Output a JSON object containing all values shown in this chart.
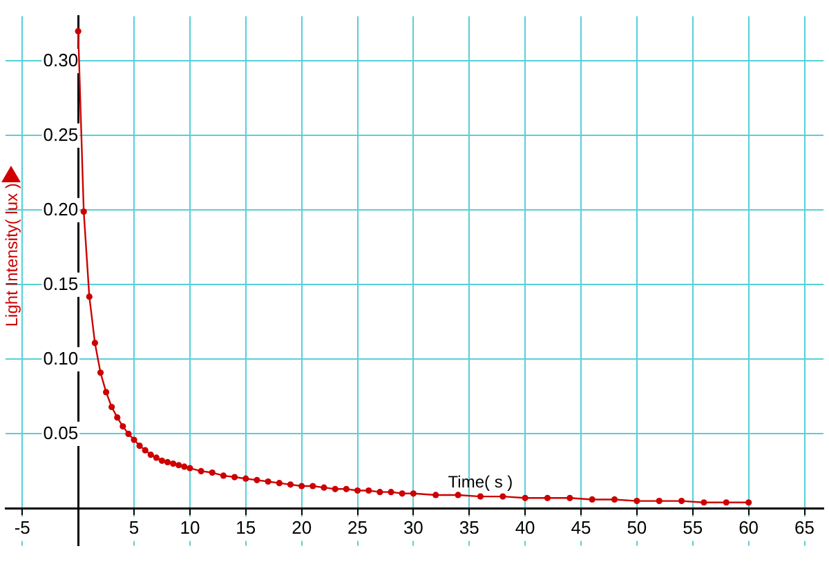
{
  "chart_data": {
    "type": "line",
    "xlabel": "Time( s )",
    "ylabel": "Light Intensity( lux )",
    "x": [
      0,
      0.5,
      1,
      1.5,
      2,
      2.5,
      3,
      3.5,
      4,
      4.5,
      5,
      5.5,
      6,
      6.5,
      7,
      7.5,
      8,
      8.5,
      9,
      9.5,
      10,
      11,
      12,
      13,
      14,
      15,
      16,
      17,
      18,
      19,
      20,
      21,
      22,
      23,
      24,
      25,
      26,
      27,
      28,
      29,
      30,
      32,
      34,
      36,
      38,
      40,
      42,
      44,
      46,
      48,
      50,
      52,
      54,
      56,
      58,
      60
    ],
    "series": [
      {
        "color": "#cc0000",
        "values": [
          0.32,
          0.199,
          0.142,
          0.111,
          0.091,
          0.078,
          0.068,
          0.061,
          0.055,
          0.05,
          0.046,
          0.042,
          0.039,
          0.036,
          0.034,
          0.032,
          0.031,
          0.03,
          0.029,
          0.028,
          0.027,
          0.025,
          0.024,
          0.022,
          0.021,
          0.02,
          0.019,
          0.018,
          0.017,
          0.016,
          0.015,
          0.015,
          0.014,
          0.013,
          0.013,
          0.012,
          0.012,
          0.011,
          0.011,
          0.01,
          0.01,
          0.009,
          0.009,
          0.008,
          0.008,
          0.007,
          0.007,
          0.007,
          0.006,
          0.006,
          0.005,
          0.005,
          0.005,
          0.004,
          0.004,
          0.004
        ]
      }
    ],
    "xlim": [
      -6.5,
      66.7
    ],
    "xticks": [
      -5,
      5,
      10,
      15,
      20,
      25,
      30,
      35,
      40,
      45,
      50,
      55,
      60,
      65
    ],
    "ylim": [
      -0.025,
      0.33
    ],
    "yticks": [
      0.05,
      {
        "value": 0.1,
        "label": "0.10"
      },
      0.15,
      {
        "value": 0.2,
        "label": "0.20"
      },
      0.25,
      {
        "value": 0.3,
        "label": "0.30"
      }
    ],
    "grid": true,
    "legend": false,
    "marker": "circle",
    "line_style": "solid"
  }
}
